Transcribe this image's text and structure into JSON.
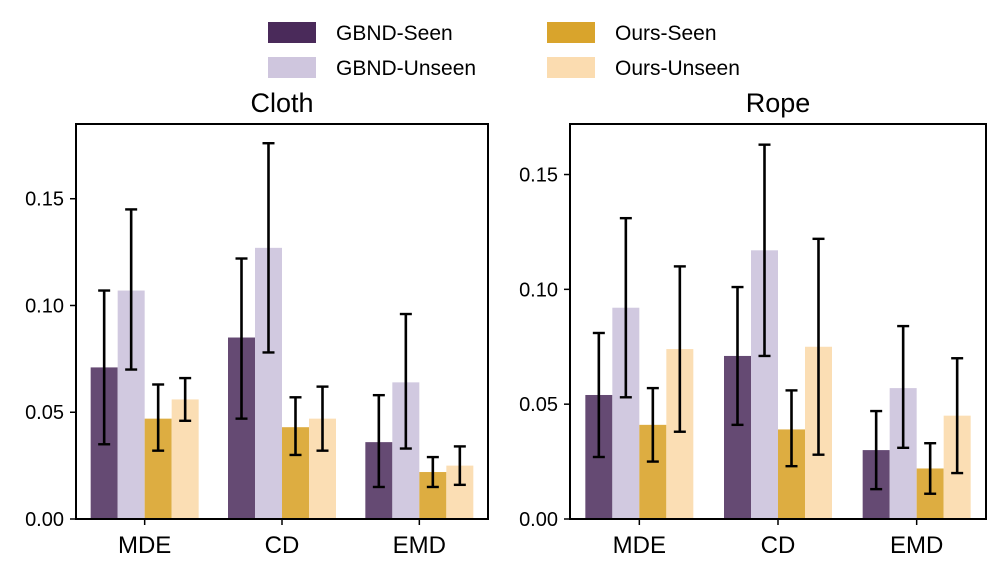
{
  "legend": {
    "entries": [
      {
        "name": "GBND-Seen",
        "color": "#4a2a5a"
      },
      {
        "name": "GBND-Unseen",
        "color": "#cfc6de"
      },
      {
        "name": "Ours-Seen",
        "color": "#d9a42c"
      },
      {
        "name": "Ours-Unseen",
        "color": "#fbdcb0"
      }
    ]
  },
  "chart_data": [
    {
      "type": "bar",
      "title": "Cloth",
      "categories": [
        "MDE",
        "CD",
        "EMD"
      ],
      "ylim": [
        0,
        0.185
      ],
      "yticks": [
        0.0,
        0.05,
        0.1,
        0.15
      ],
      "ytick_labels": [
        "0.00",
        "0.05",
        "0.10",
        "0.15"
      ],
      "series": [
        {
          "name": "GBND-Seen",
          "values": [
            0.071,
            0.085,
            0.036
          ],
          "err_low": [
            0.035,
            0.047,
            0.015
          ],
          "err_high": [
            0.107,
            0.122,
            0.058
          ]
        },
        {
          "name": "GBND-Unseen",
          "values": [
            0.107,
            0.127,
            0.064
          ],
          "err_low": [
            0.07,
            0.078,
            0.033
          ],
          "err_high": [
            0.145,
            0.176,
            0.096
          ]
        },
        {
          "name": "Ours-Seen",
          "values": [
            0.047,
            0.043,
            0.022
          ],
          "err_low": [
            0.032,
            0.03,
            0.015
          ],
          "err_high": [
            0.063,
            0.057,
            0.029
          ]
        },
        {
          "name": "Ours-Unseen",
          "values": [
            0.056,
            0.047,
            0.025
          ],
          "err_low": [
            0.046,
            0.032,
            0.016
          ],
          "err_high": [
            0.066,
            0.062,
            0.034
          ]
        }
      ]
    },
    {
      "type": "bar",
      "title": "Rope",
      "categories": [
        "MDE",
        "CD",
        "EMD"
      ],
      "ylim": [
        0,
        0.172
      ],
      "yticks": [
        0.0,
        0.05,
        0.1,
        0.15
      ],
      "ytick_labels": [
        "0.00",
        "0.05",
        "0.10",
        "0.15"
      ],
      "series": [
        {
          "name": "GBND-Seen",
          "values": [
            0.054,
            0.071,
            0.03
          ],
          "err_low": [
            0.027,
            0.041,
            0.013
          ],
          "err_high": [
            0.081,
            0.101,
            0.047
          ]
        },
        {
          "name": "GBND-Unseen",
          "values": [
            0.092,
            0.117,
            0.057
          ],
          "err_low": [
            0.053,
            0.071,
            0.031
          ],
          "err_high": [
            0.131,
            0.163,
            0.084
          ]
        },
        {
          "name": "Ours-Seen",
          "values": [
            0.041,
            0.039,
            0.022
          ],
          "err_low": [
            0.025,
            0.023,
            0.011
          ],
          "err_high": [
            0.057,
            0.056,
            0.033
          ]
        },
        {
          "name": "Ours-Unseen",
          "values": [
            0.074,
            0.075,
            0.045
          ],
          "err_low": [
            0.038,
            0.028,
            0.02
          ],
          "err_high": [
            0.11,
            0.122,
            0.07
          ]
        }
      ]
    }
  ]
}
